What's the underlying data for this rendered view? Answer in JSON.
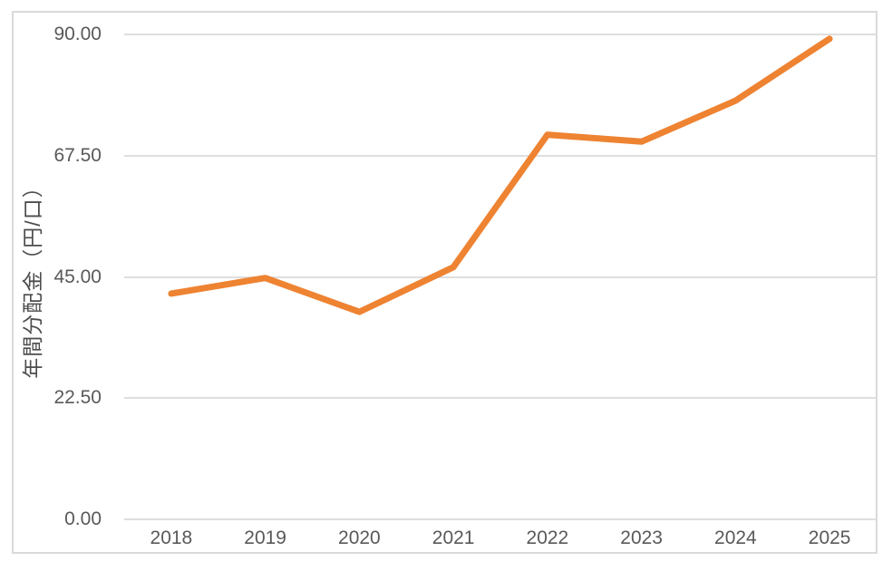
{
  "chart_data": {
    "type": "line",
    "title": "",
    "xlabel": "",
    "ylabel": "年間分配金（円/口）",
    "categories": [
      "2018",
      "2019",
      "2020",
      "2021",
      "2022",
      "2023",
      "2024",
      "2025"
    ],
    "series": [
      {
        "values": [
          41.9,
          44.8,
          38.5,
          46.8,
          71.4,
          70.1,
          77.7,
          89.2
        ],
        "color": "#EE8332"
      }
    ],
    "ylim": [
      0,
      90
    ],
    "yticks": [
      {
        "value": 0,
        "label": "0.00"
      },
      {
        "value": 22.5,
        "label": "22.50"
      },
      {
        "value": 45,
        "label": "45.00"
      },
      {
        "value": 67.5,
        "label": "67.50"
      },
      {
        "value": 90,
        "label": "90.00"
      }
    ],
    "grid": "horizontal",
    "legend_position": "none"
  },
  "style_colors": {
    "line": "#EE8332",
    "gridline": "#DEDEDE",
    "tick_label": "#595959",
    "axis_title": "#4D4D4D",
    "frame_border": "#DADADA",
    "background": "#FFFFFF"
  }
}
